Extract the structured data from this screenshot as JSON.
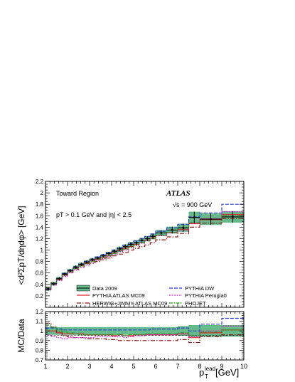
{
  "chart_data": [
    {
      "type": "line",
      "panel": "main",
      "ylabel": "<d²ΣpT/dηdφ> [GeV]",
      "ylim": [
        0,
        2.2
      ],
      "xlim": [
        1,
        10
      ],
      "yticks": [
        "0.2",
        "0.4",
        "0.6",
        "0.8",
        "1",
        "1.2",
        "1.4",
        "1.6",
        "1.8",
        "2",
        "2.2"
      ],
      "annotations": {
        "region": "Toward Region",
        "experiment": "ATLAS",
        "energy": "√s = 900 GeV",
        "cuts": "pT > 0.1 GeV and |η| < 2.5"
      },
      "legend": [
        {
          "label": "Data 2009",
          "color": "#66b98a"
        },
        {
          "label": "PYTHIA ATLAS MC09",
          "color": "#e0242b"
        },
        {
          "label": "HERWIG+JIMMY ATLAS MC09",
          "color": "#8b1a1a"
        },
        {
          "label": "PYTHIA DW",
          "color": "#2b3fd8"
        },
        {
          "label": "PYTHIA Perugia0",
          "color": "#e02ad0"
        },
        {
          "label": "PHOJET",
          "color": "#2a9a2a"
        }
      ],
      "x_edges": [
        1,
        1.25,
        1.5,
        1.75,
        2,
        2.25,
        2.5,
        2.75,
        3,
        3.25,
        3.5,
        3.75,
        4,
        4.25,
        4.5,
        4.75,
        5,
        5.25,
        5.5,
        5.75,
        6,
        6.5,
        7,
        7.5,
        8,
        9,
        10
      ],
      "series": [
        {
          "name": "Data 2009",
          "values": [
            0.32,
            0.41,
            0.5,
            0.58,
            0.64,
            0.7,
            0.75,
            0.79,
            0.83,
            0.86,
            0.9,
            0.94,
            0.98,
            1.02,
            1.06,
            1.1,
            1.13,
            1.17,
            1.2,
            1.24,
            1.3,
            1.35,
            1.39,
            1.57,
            1.54,
            1.58
          ],
          "err": [
            0.03,
            0.03,
            0.03,
            0.03,
            0.03,
            0.03,
            0.03,
            0.03,
            0.03,
            0.03,
            0.03,
            0.03,
            0.03,
            0.04,
            0.04,
            0.04,
            0.04,
            0.04,
            0.04,
            0.05,
            0.05,
            0.06,
            0.07,
            0.1,
            0.1,
            0.1
          ]
        },
        {
          "name": "PYTHIA ATLAS MC09",
          "values": [
            0.32,
            0.41,
            0.49,
            0.57,
            0.63,
            0.68,
            0.73,
            0.77,
            0.81,
            0.84,
            0.87,
            0.91,
            0.95,
            0.99,
            1.03,
            1.06,
            1.1,
            1.13,
            1.17,
            1.21,
            1.26,
            1.31,
            1.36,
            1.46,
            1.53,
            1.62
          ]
        },
        {
          "name": "HERWIG+JIMMY ATLAS MC09",
          "values": [
            0.35,
            0.43,
            0.5,
            0.56,
            0.61,
            0.66,
            0.7,
            0.74,
            0.77,
            0.8,
            0.83,
            0.86,
            0.9,
            0.93,
            0.96,
            1.0,
            1.03,
            1.06,
            1.09,
            1.13,
            1.18,
            1.23,
            1.29,
            1.4,
            1.47,
            1.55
          ]
        },
        {
          "name": "PYTHIA DW",
          "values": [
            0.33,
            0.42,
            0.51,
            0.59,
            0.65,
            0.71,
            0.76,
            0.8,
            0.84,
            0.88,
            0.92,
            0.96,
            1.0,
            1.04,
            1.08,
            1.12,
            1.16,
            1.2,
            1.24,
            1.28,
            1.33,
            1.39,
            1.45,
            1.58,
            1.65,
            1.8
          ]
        },
        {
          "name": "PYTHIA Perugia0",
          "values": [
            0.31,
            0.39,
            0.47,
            0.54,
            0.6,
            0.65,
            0.7,
            0.74,
            0.78,
            0.82,
            0.85,
            0.89,
            0.93,
            0.97,
            1.0,
            1.04,
            1.08,
            1.12,
            1.16,
            1.2,
            1.25,
            1.3,
            1.35,
            1.47,
            1.55,
            1.67
          ]
        },
        {
          "name": "PHOJET",
          "values": [
            0.34,
            0.43,
            0.51,
            0.58,
            0.63,
            0.68,
            0.72,
            0.76,
            0.8,
            0.83,
            0.86,
            0.9,
            0.94,
            0.98,
            1.01,
            1.05,
            1.09,
            1.13,
            1.16,
            1.2,
            1.26,
            1.31,
            1.37,
            1.48,
            1.54,
            1.6
          ]
        }
      ]
    },
    {
      "type": "line",
      "panel": "ratio",
      "ylabel": "MC/Data",
      "xlabel": "p_T^lead [GeV]",
      "xlabel_main": "p",
      "xlabel_sub": "T",
      "xlabel_sup": "lead",
      "xlabel_unit": " [GeV]",
      "ylim": [
        0.7,
        1.2
      ],
      "xlim": [
        1,
        10
      ],
      "yticks": [
        "0.7",
        "0.8",
        "0.9",
        "1",
        "1.1",
        "1.2"
      ],
      "xticks": [
        "1",
        "2",
        "3",
        "4",
        "5",
        "6",
        "7",
        "8",
        "9",
        "10"
      ],
      "x_edges": [
        1,
        1.25,
        1.5,
        1.75,
        2,
        2.25,
        2.5,
        2.75,
        3,
        3.25,
        3.5,
        3.75,
        4,
        4.25,
        4.5,
        4.75,
        5,
        5.25,
        5.5,
        5.75,
        6,
        6.5,
        7,
        7.5,
        8,
        9,
        10
      ],
      "band_err": [
        0.04,
        0.04,
        0.04,
        0.04,
        0.04,
        0.04,
        0.04,
        0.04,
        0.04,
        0.04,
        0.04,
        0.04,
        0.04,
        0.04,
        0.04,
        0.04,
        0.04,
        0.04,
        0.04,
        0.04,
        0.04,
        0.04,
        0.05,
        0.06,
        0.06,
        0.06
      ],
      "series": [
        {
          "name": "PYTHIA ATLAS MC09",
          "values": [
            1.0,
            1.0,
            0.98,
            0.97,
            0.97,
            0.97,
            0.97,
            0.96,
            0.96,
            0.96,
            0.96,
            0.96,
            0.95,
            0.96,
            0.95,
            0.95,
            0.96,
            0.96,
            0.96,
            0.96,
            0.96,
            0.96,
            0.97,
            0.93,
            0.98,
            1.01
          ]
        },
        {
          "name": "HERWIG+JIMMY ATLAS MC09",
          "values": [
            1.08,
            1.04,
            0.99,
            0.95,
            0.94,
            0.93,
            0.93,
            0.92,
            0.92,
            0.92,
            0.92,
            0.91,
            0.91,
            0.9,
            0.9,
            0.9,
            0.9,
            0.9,
            0.9,
            0.9,
            0.9,
            0.9,
            0.91,
            0.88,
            0.94,
            0.96
          ]
        },
        {
          "name": "PYTHIA DW",
          "values": [
            1.03,
            1.03,
            1.02,
            1.01,
            1.01,
            1.01,
            1.01,
            1.01,
            1.01,
            1.01,
            1.01,
            1.01,
            1.01,
            1.01,
            1.01,
            1.01,
            1.01,
            1.01,
            1.01,
            1.02,
            1.02,
            1.02,
            1.03,
            1.0,
            1.07,
            1.13
          ]
        },
        {
          "name": "PYTHIA Perugia0",
          "values": [
            0.96,
            0.94,
            0.93,
            0.92,
            0.93,
            0.93,
            0.93,
            0.93,
            0.93,
            0.94,
            0.94,
            0.94,
            0.94,
            0.94,
            0.93,
            0.94,
            0.95,
            0.95,
            0.96,
            0.96,
            0.96,
            0.96,
            0.97,
            0.94,
            1.0,
            1.05
          ]
        },
        {
          "name": "PHOJET",
          "values": [
            1.06,
            1.04,
            1.01,
            0.99,
            0.98,
            0.97,
            0.96,
            0.96,
            0.96,
            0.96,
            0.96,
            0.96,
            0.96,
            0.96,
            0.95,
            0.96,
            0.96,
            0.96,
            0.97,
            0.97,
            0.97,
            0.97,
            0.98,
            0.95,
            0.99,
            1.01
          ]
        }
      ]
    }
  ]
}
